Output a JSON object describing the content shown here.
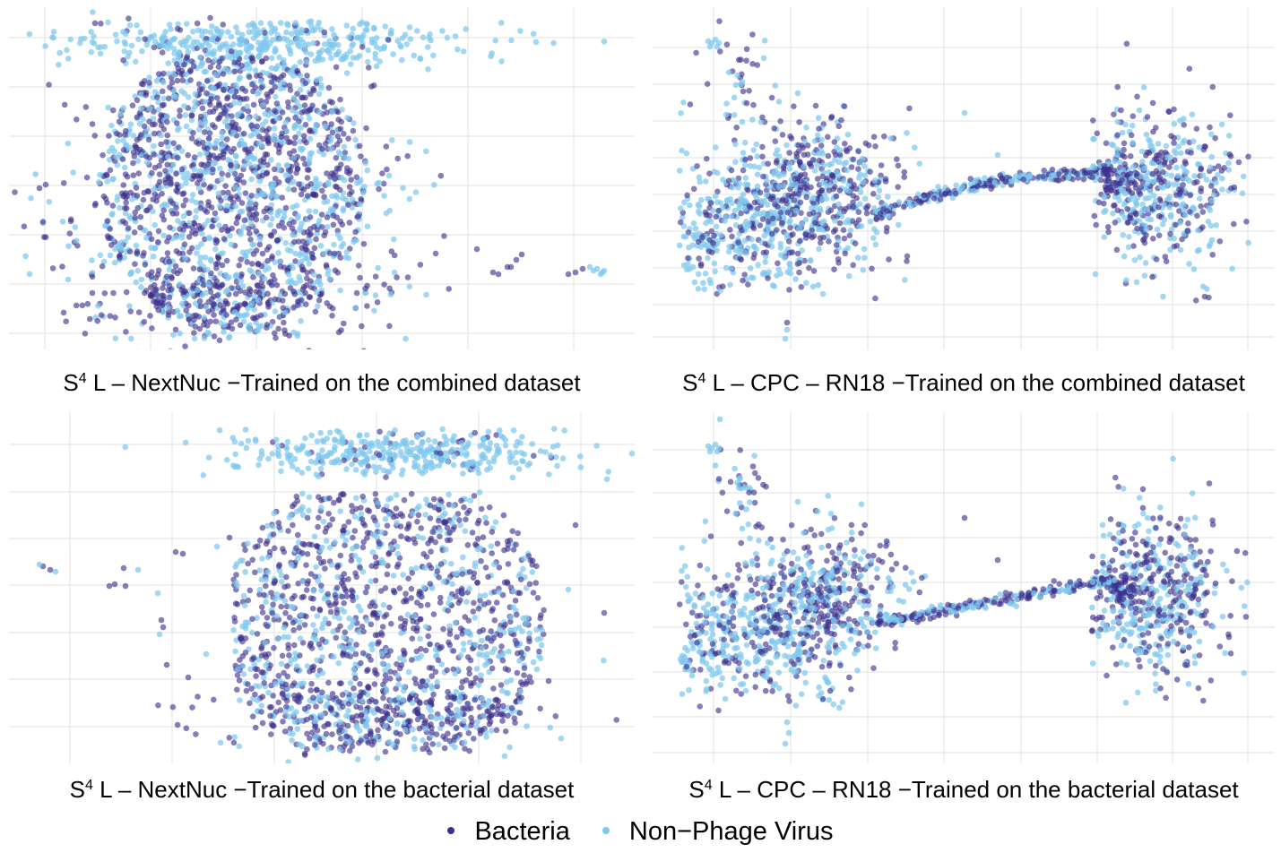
{
  "legend": {
    "items": [
      {
        "label": "Bacteria",
        "color": "#3b2e8c"
      },
      {
        "label": "Non−Phage Virus",
        "color": "#7ec8ee"
      }
    ]
  },
  "chart_data": [
    {
      "type": "scatter",
      "caption_sup": "4",
      "caption_pre": "S",
      "caption_rest": " L – NextNuc −Trained on the combined dataset",
      "axis_ticks_shown": false,
      "grid": true,
      "series": [
        {
          "name": "Bacteria",
          "color": "#3b2e8c"
        },
        {
          "name": "Non−Phage Virus",
          "color": "#7ec8ee"
        }
      ]
    },
    {
      "type": "scatter",
      "caption_sup": "4",
      "caption_pre": "S",
      "caption_rest": " L – CPC – RN18 −Trained on the combined dataset",
      "axis_ticks_shown": false,
      "grid": true,
      "series": [
        {
          "name": "Bacteria",
          "color": "#3b2e8c"
        },
        {
          "name": "Non−Phage Virus",
          "color": "#7ec8ee"
        }
      ]
    },
    {
      "type": "scatter",
      "caption_sup": "4",
      "caption_pre": "S",
      "caption_rest": " L – NextNuc −Trained on the bacterial dataset",
      "axis_ticks_shown": false,
      "grid": true,
      "series": [
        {
          "name": "Bacteria",
          "color": "#3b2e8c"
        },
        {
          "name": "Non−Phage Virus",
          "color": "#7ec8ee"
        }
      ]
    },
    {
      "type": "scatter",
      "caption_sup": "4",
      "caption_pre": "S",
      "caption_rest": " L – CPC – RN18 −Trained on the bacterial dataset",
      "axis_ticks_shown": false,
      "grid": true,
      "series": [
        {
          "name": "Bacteria",
          "color": "#3b2e8c"
        },
        {
          "name": "Non−Phage Virus",
          "color": "#7ec8ee"
        }
      ]
    }
  ]
}
